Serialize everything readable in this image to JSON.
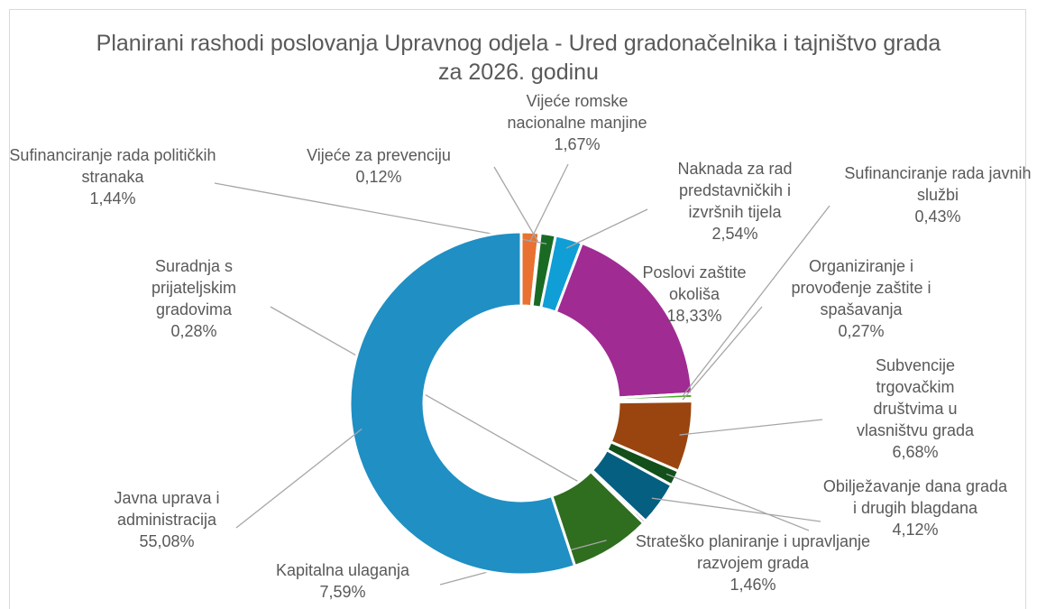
{
  "chart_data": {
    "type": "donut",
    "title": "Planirani rashodi poslovanja Upravnog odjela - Ured gradonačelnika  i tajništvo grada za 2026. godinu",
    "categories": [
      "Vijeće romske nacionalne manjine",
      "Vijeće za prevenciju",
      "Sufinanciranje rada političkih stranaka",
      "Naknada za rad predstavničkih i izvršnih tijela",
      "Poslovi zaštite okoliša",
      "Sufinanciranje rada javnih službi",
      "Organiziranje i provođenje zaštite i spašavanja",
      "Subvencije trgovačkim društvima u vlasništvu grada",
      "Strateško planiranje i upravljanje razvojem grada",
      "Obilježavanje dana grada i drugih blagdana",
      "Suradnja s prijateljskim gradovima",
      "Kapitalna ulaganja",
      "Javna uprava i administracija"
    ],
    "values": [
      1.67,
      0.12,
      1.44,
      2.54,
      18.33,
      0.43,
      0.27,
      6.68,
      1.46,
      4.12,
      0.28,
      7.59,
      55.08
    ],
    "value_labels": [
      "1,67%",
      "0,12%",
      "1,44%",
      "2,54%",
      "18,33%",
      "0,43%",
      "0,27%",
      "6,68%",
      "1,46%",
      "4,12%",
      "0,28%",
      "7,59%",
      "55,08%"
    ],
    "colors": [
      "#e97132",
      "#a5a5a5",
      "#196b24",
      "#0f9ed5",
      "#a02b93",
      "#4ea72e",
      "#bfbfbf",
      "#9a450f",
      "#124f1a",
      "#045f80",
      "#6a1d62",
      "#2f6d1f",
      "#1f8fc4"
    ]
  }
}
